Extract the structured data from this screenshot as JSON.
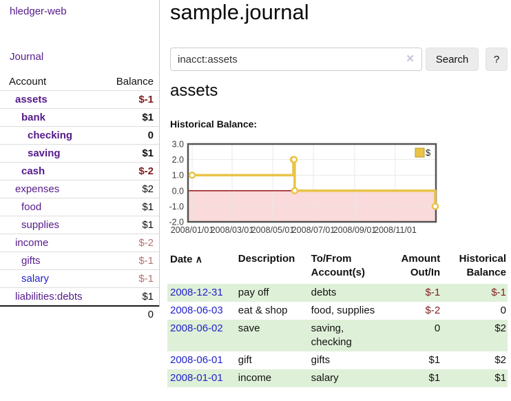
{
  "sidebar": {
    "app_title": "hledger-web",
    "journal_link": "Journal",
    "header": {
      "account": "Account",
      "balance": "Balance"
    },
    "accounts": [
      {
        "name": "assets",
        "indent": 0,
        "balance": "$-1",
        "bold": true,
        "negative": "strong"
      },
      {
        "name": "bank",
        "indent": 1,
        "balance": "$1",
        "bold": true
      },
      {
        "name": "checking",
        "indent": 2,
        "balance": "0",
        "bold": true
      },
      {
        "name": "saving",
        "indent": 2,
        "balance": "$1",
        "bold": true
      },
      {
        "name": "cash",
        "indent": 1,
        "balance": "$-2",
        "bold": true,
        "negative": "strong"
      },
      {
        "name": "expenses",
        "indent": 0,
        "balance": "$2"
      },
      {
        "name": "food",
        "indent": 1,
        "balance": "$1"
      },
      {
        "name": "supplies",
        "indent": 1,
        "balance": "$1"
      },
      {
        "name": "income",
        "indent": 0,
        "balance": "$-2",
        "negative": "soft"
      },
      {
        "name": "gifts",
        "indent": 1,
        "balance": "$-1",
        "negative": "soft"
      },
      {
        "name": "salary",
        "indent": 1,
        "balance": "$-1",
        "negative": "soft",
        "link_color": "blue"
      },
      {
        "name": "liabilities:debts",
        "indent": 0,
        "balance": "$1"
      }
    ],
    "total": "0"
  },
  "main": {
    "title": "sample.journal",
    "search": {
      "value": "inacct:assets",
      "clear_icon": "✕",
      "search_button": "Search",
      "help_button": "?"
    },
    "account_heading": "assets",
    "chart_label": "Historical Balance:"
  },
  "chart_data": {
    "type": "line",
    "style": "step",
    "title": "Historical Balance:",
    "series": [
      {
        "name": "$",
        "color": "#e9c347",
        "points": [
          [
            "2008-01-01",
            1
          ],
          [
            "2008-06-01",
            2
          ],
          [
            "2008-06-02",
            2
          ],
          [
            "2008-06-03",
            0
          ],
          [
            "2008-12-31",
            -1
          ]
        ]
      }
    ],
    "xlim": [
      "2008-01-01",
      "2008-12-31"
    ],
    "ylim": [
      -2,
      3
    ],
    "x_ticks": [
      "2008/01/01",
      "2008/03/01",
      "2008/05/01",
      "2008/07/01",
      "2008/09/01",
      "2008/11/01"
    ],
    "y_ticks": [
      3.0,
      2.0,
      1.0,
      0.0,
      -1.0,
      -2.0
    ],
    "grid": true,
    "legend": {
      "position": "top-right",
      "label": "$"
    },
    "colors": {
      "negative_region": "#fadada",
      "zero_line": "#8b0000",
      "gridline": "#e8e8e8",
      "border": "#545454",
      "tick_label": "#3b3b3b"
    }
  },
  "register": {
    "headers": [
      "Date",
      "Description",
      "To/From Account(s)",
      "Amount Out/In",
      "Historical Balance"
    ],
    "sort_icon": "∧",
    "rows": [
      {
        "date": "2008-12-31",
        "description": "pay off",
        "accounts": "debts",
        "amount": "$-1",
        "balance": "$-1",
        "amount_negative": true,
        "balance_negative": true
      },
      {
        "date": "2008-06-03",
        "description": "eat & shop",
        "accounts": "food, supplies",
        "amount": "$-2",
        "balance": "0",
        "amount_negative": true,
        "balance_negative": false
      },
      {
        "date": "2008-06-02",
        "description": "save",
        "accounts": "saving, checking",
        "amount": "0",
        "balance": "$2",
        "amount_negative": false,
        "balance_negative": false
      },
      {
        "date": "2008-06-01",
        "description": "gift",
        "accounts": "gifts",
        "amount": "$1",
        "balance": "$2",
        "amount_negative": false,
        "balance_negative": false
      },
      {
        "date": "2008-01-01",
        "description": "income",
        "accounts": "salary",
        "amount": "$1",
        "balance": "$1",
        "amount_negative": false,
        "balance_negative": false
      }
    ]
  }
}
